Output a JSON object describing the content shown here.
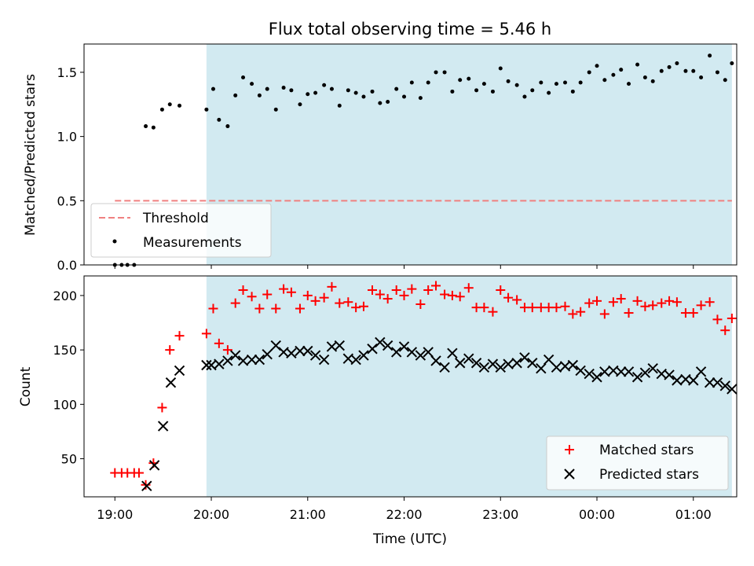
{
  "chart_data": [
    {
      "type": "scatter",
      "title": "Flux total observing time = 5.46 h",
      "xlabel": "",
      "ylabel": "Matched/Predicted stars",
      "ylim": [
        0,
        1.72
      ],
      "yticks": [
        "0.0",
        "0.5",
        "1.0",
        "1.5"
      ],
      "ytick_values": [
        0,
        0.5,
        1.0,
        1.5
      ],
      "xlim": [
        18.68,
        25.45
      ],
      "xticks": [
        19,
        20,
        21,
        22,
        23,
        24,
        25
      ],
      "grid": false,
      "legend": {
        "placement": "lower-left",
        "entries": [
          "Threshold",
          "Measurements"
        ]
      },
      "shaded_region": {
        "x_start": 19.95,
        "x_end": 25.4,
        "color": "#add8e6"
      },
      "threshold": {
        "name": "Threshold",
        "y": 0.5,
        "x_start": 19.0,
        "x_end": 25.4,
        "color": "#f08080",
        "style": "dashed"
      },
      "series": [
        {
          "name": "Measurements",
          "color": "#000000",
          "x": [
            19.0,
            19.07,
            19.13,
            19.2,
            19.32,
            19.4,
            19.49,
            19.57,
            19.67,
            19.95,
            20.02,
            20.08,
            20.17,
            20.25,
            20.33,
            20.42,
            20.5,
            20.58,
            20.67,
            20.75,
            20.83,
            20.92,
            21.0,
            21.08,
            21.17,
            21.25,
            21.33,
            21.42,
            21.5,
            21.58,
            21.67,
            21.75,
            21.83,
            21.92,
            22.0,
            22.08,
            22.17,
            22.25,
            22.33,
            22.42,
            22.5,
            22.58,
            22.67,
            22.75,
            22.83,
            22.92,
            23.0,
            23.08,
            23.17,
            23.25,
            23.33,
            23.42,
            23.5,
            23.58,
            23.67,
            23.75,
            23.83,
            23.92,
            24.0,
            24.08,
            24.17,
            24.25,
            24.33,
            24.42,
            24.5,
            24.58,
            24.67,
            24.75,
            24.83,
            24.92,
            25.0,
            25.08,
            25.17,
            25.25,
            25.33,
            25.4
          ],
          "y": [
            0.0,
            0.0,
            0.0,
            0.0,
            1.08,
            1.07,
            1.21,
            1.25,
            1.24,
            1.21,
            1.37,
            1.13,
            1.08,
            1.32,
            1.46,
            1.41,
            1.32,
            1.37,
            1.21,
            1.38,
            1.36,
            1.25,
            1.33,
            1.34,
            1.4,
            1.37,
            1.24,
            1.36,
            1.34,
            1.31,
            1.35,
            1.26,
            1.27,
            1.37,
            1.31,
            1.42,
            1.3,
            1.42,
            1.5,
            1.5,
            1.35,
            1.44,
            1.45,
            1.36,
            1.41,
            1.35,
            1.53,
            1.43,
            1.4,
            1.31,
            1.36,
            1.42,
            1.34,
            1.41,
            1.42,
            1.35,
            1.42,
            1.5,
            1.55,
            1.44,
            1.48,
            1.52,
            1.41,
            1.56,
            1.46,
            1.43,
            1.51,
            1.54,
            1.57,
            1.51,
            1.51,
            1.46,
            1.63,
            1.5,
            1.44,
            1.57
          ]
        }
      ]
    },
    {
      "type": "scatter",
      "title": "",
      "xlabel": "Time (UTC)",
      "ylabel": "Count",
      "ylim": [
        15,
        218
      ],
      "yticks": [
        "50",
        "100",
        "150",
        "200"
      ],
      "ytick_values": [
        50,
        100,
        150,
        200
      ],
      "xlim": [
        18.68,
        25.45
      ],
      "xticks": [
        19,
        20,
        21,
        22,
        23,
        24,
        25
      ],
      "xtick_labels": [
        "19:00",
        "20:00",
        "21:00",
        "22:00",
        "23:00",
        "00:00",
        "01:00"
      ],
      "grid": false,
      "legend": {
        "placement": "lower-right",
        "entries": [
          "Matched stars",
          "Predicted stars"
        ]
      },
      "shaded_region": {
        "x_start": 19.95,
        "x_end": 25.4,
        "color": "#add8e6"
      },
      "series": [
        {
          "name": "Matched stars",
          "color": "#ff0000",
          "marker": "plus",
          "x": [
            19.0,
            19.07,
            19.13,
            19.2,
            19.25,
            19.32,
            19.4,
            19.49,
            19.57,
            19.67,
            19.95,
            20.02,
            20.08,
            20.17,
            20.25,
            20.33,
            20.42,
            20.5,
            20.58,
            20.67,
            20.75,
            20.83,
            20.92,
            21.0,
            21.08,
            21.17,
            21.25,
            21.33,
            21.42,
            21.5,
            21.58,
            21.67,
            21.75,
            21.83,
            21.92,
            22.0,
            22.08,
            22.17,
            22.25,
            22.33,
            22.42,
            22.5,
            22.58,
            22.67,
            22.75,
            22.83,
            22.92,
            23.0,
            23.08,
            23.17,
            23.25,
            23.33,
            23.42,
            23.5,
            23.58,
            23.67,
            23.75,
            23.83,
            23.92,
            24.0,
            24.08,
            24.17,
            24.25,
            24.33,
            24.42,
            24.5,
            24.58,
            24.67,
            24.75,
            24.83,
            24.92,
            25.0,
            25.08,
            25.17,
            25.25,
            25.33,
            25.4
          ],
          "y": [
            37,
            37,
            37,
            37,
            37,
            26,
            46,
            97,
            150,
            163,
            165,
            188,
            156,
            150,
            193,
            205,
            199,
            188,
            201,
            188,
            206,
            203,
            188,
            200,
            195,
            198,
            208,
            193,
            194,
            189,
            190,
            205,
            201,
            197,
            205,
            200,
            206,
            192,
            205,
            209,
            201,
            200,
            199,
            207,
            189,
            189,
            185,
            205,
            198,
            196,
            189,
            189,
            189,
            189,
            189,
            190,
            183,
            185,
            193,
            195,
            183,
            194,
            197,
            184,
            195,
            190,
            191,
            193,
            195,
            194,
            184,
            184,
            191,
            194,
            178,
            168,
            179
          ]
        },
        {
          "name": "Predicted stars",
          "color": "#000000",
          "marker": "x",
          "x": [
            19.33,
            19.41,
            19.5,
            19.58,
            19.67,
            19.95,
            20.0,
            20.08,
            20.17,
            20.25,
            20.33,
            20.42,
            20.5,
            20.58,
            20.67,
            20.75,
            20.83,
            20.92,
            21.0,
            21.08,
            21.17,
            21.25,
            21.33,
            21.42,
            21.5,
            21.58,
            21.67,
            21.75,
            21.83,
            21.92,
            22.0,
            22.08,
            22.17,
            22.25,
            22.33,
            22.42,
            22.5,
            22.58,
            22.67,
            22.75,
            22.83,
            22.92,
            23.0,
            23.08,
            23.17,
            23.25,
            23.33,
            23.42,
            23.5,
            23.58,
            23.67,
            23.75,
            23.83,
            23.92,
            24.0,
            24.08,
            24.17,
            24.25,
            24.33,
            24.42,
            24.5,
            24.58,
            24.67,
            24.75,
            24.83,
            24.92,
            25.0,
            25.08,
            25.17,
            25.25,
            25.33,
            25.4
          ],
          "y": [
            25,
            44,
            80,
            120,
            131,
            136,
            136,
            137,
            140,
            145,
            140,
            141,
            141,
            146,
            154,
            148,
            147,
            149,
            149,
            145,
            141,
            153,
            154,
            142,
            141,
            145,
            151,
            157,
            154,
            148,
            153,
            148,
            145,
            148,
            140,
            134,
            147,
            138,
            142,
            138,
            134,
            137,
            134,
            137,
            138,
            143,
            138,
            133,
            141,
            134,
            135,
            136,
            131,
            128,
            125,
            130,
            131,
            130,
            130,
            125,
            129,
            133,
            128,
            127,
            122,
            123,
            122,
            130,
            120,
            120,
            117,
            114
          ]
        }
      ]
    }
  ]
}
